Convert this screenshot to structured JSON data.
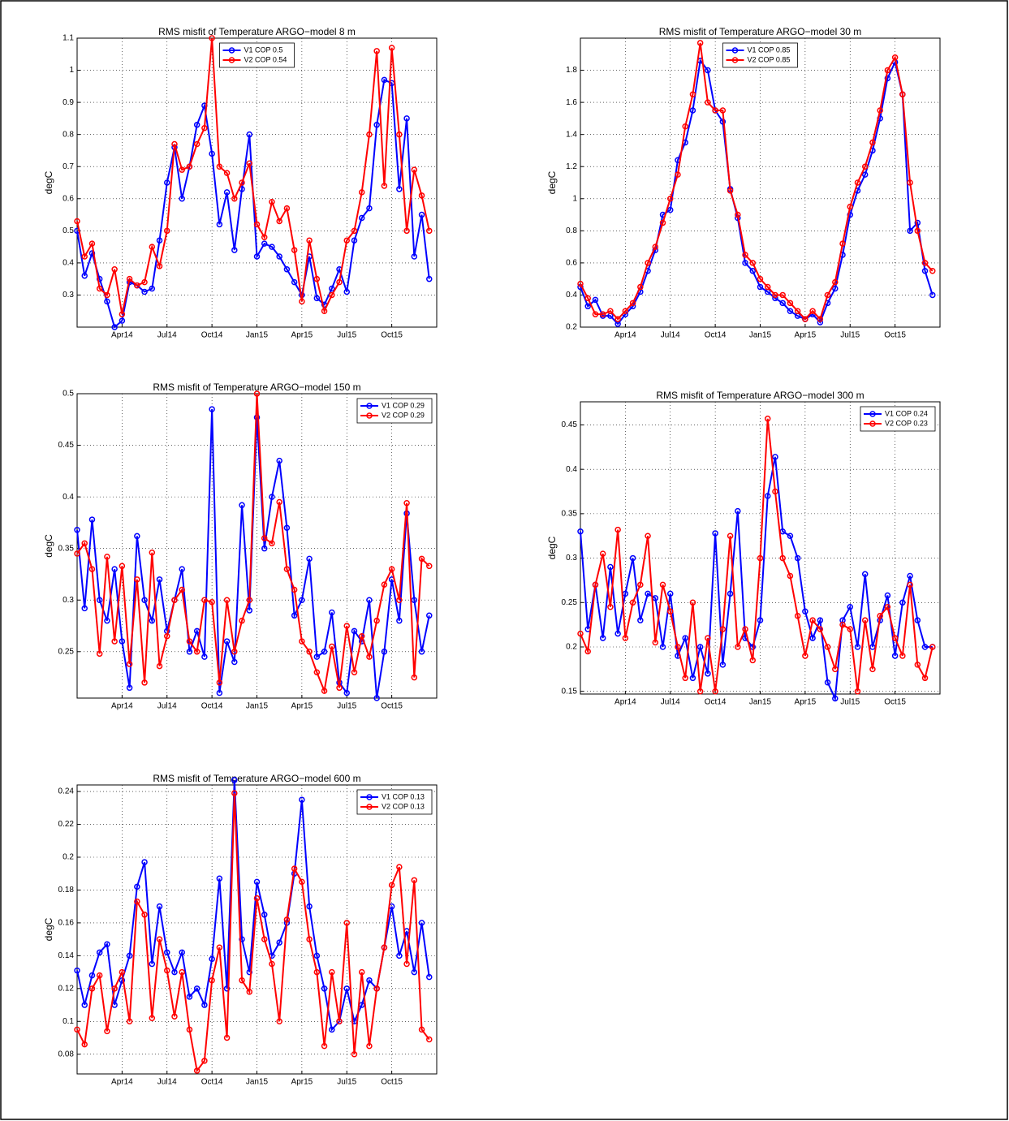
{
  "chart_data": [
    {
      "type": "line",
      "title": "RMS misfit of Temperature ARGO−model 8 m",
      "y_label": "degC",
      "legend": "upper center",
      "grid": true,
      "xlim": [
        0,
        24
      ],
      "xticks": [
        {
          "value": 3,
          "label": "Apr14"
        },
        {
          "value": 6,
          "label": "Jul14"
        },
        {
          "value": 9,
          "label": "Oct14"
        },
        {
          "value": 12,
          "label": "Jan15"
        },
        {
          "value": 15,
          "label": "Apr15"
        },
        {
          "value": 18,
          "label": "Jul15"
        },
        {
          "value": 21,
          "label": "Oct15"
        }
      ],
      "ylim": [
        0.2,
        1.1
      ],
      "yticks": [
        0.3,
        0.4,
        0.5,
        0.6,
        0.7,
        0.8,
        0.9,
        1,
        1.1
      ],
      "x": [
        0,
        0.5,
        1,
        1.5,
        2,
        2.5,
        3,
        3.5,
        4,
        4.5,
        5,
        5.5,
        6,
        6.5,
        7,
        7.5,
        8,
        8.5,
        9,
        9.5,
        10,
        10.5,
        11,
        11.5,
        12,
        12.5,
        13,
        13.5,
        14,
        14.5,
        15,
        15.5,
        16,
        16.5,
        17,
        17.5,
        18,
        18.5,
        19,
        19.5,
        20,
        20.5,
        21,
        21.5,
        22,
        22.5,
        23,
        23.5
      ],
      "series": [
        {
          "name": "V1 COP 0.5",
          "color": "#0000ff",
          "values": [
            0.5,
            0.36,
            0.43,
            0.35,
            0.28,
            0.2,
            0.22,
            0.34,
            0.33,
            0.31,
            0.32,
            0.47,
            0.65,
            0.76,
            0.6,
            0.7,
            0.83,
            0.89,
            0.74,
            0.52,
            0.62,
            0.44,
            0.63,
            0.8,
            0.42,
            0.46,
            0.45,
            0.42,
            0.38,
            0.34,
            0.3,
            0.42,
            0.29,
            0.27,
            0.32,
            0.38,
            0.31,
            0.47,
            0.54,
            0.57,
            0.83,
            0.97,
            0.96,
            0.63,
            0.85,
            0.42,
            0.55,
            0.35
          ]
        },
        {
          "name": "V2 COP 0.54",
          "color": "#ff0000",
          "values": [
            0.53,
            0.42,
            0.46,
            0.32,
            0.3,
            0.38,
            0.24,
            0.35,
            0.33,
            0.34,
            0.45,
            0.39,
            0.5,
            0.77,
            0.69,
            0.7,
            0.77,
            0.82,
            1.1,
            0.7,
            0.68,
            0.6,
            0.65,
            0.71,
            0.52,
            0.48,
            0.59,
            0.53,
            0.57,
            0.44,
            0.28,
            0.47,
            0.35,
            0.25,
            0.3,
            0.34,
            0.47,
            0.5,
            0.62,
            0.8,
            1.06,
            0.64,
            1.07,
            0.8,
            0.5,
            0.69,
            0.61,
            0.5
          ]
        }
      ]
    },
    {
      "type": "line",
      "title": "RMS misfit of Temperature ARGO−model 30 m",
      "y_label": "degC",
      "legend": "upper center",
      "grid": true,
      "xlim": [
        0,
        24
      ],
      "xticks": [
        {
          "value": 3,
          "label": "Apr14"
        },
        {
          "value": 6,
          "label": "Jul14"
        },
        {
          "value": 9,
          "label": "Oct14"
        },
        {
          "value": 12,
          "label": "Jan15"
        },
        {
          "value": 15,
          "label": "Apr15"
        },
        {
          "value": 18,
          "label": "Jul15"
        },
        {
          "value": 21,
          "label": "Oct15"
        }
      ],
      "ylim": [
        0.2,
        2.0
      ],
      "yticks": [
        0.2,
        0.4,
        0.6,
        0.8,
        1,
        1.2,
        1.4,
        1.6,
        1.8
      ],
      "x": [
        0,
        0.5,
        1,
        1.5,
        2,
        2.5,
        3,
        3.5,
        4,
        4.5,
        5,
        5.5,
        6,
        6.5,
        7,
        7.5,
        8,
        8.5,
        9,
        9.5,
        10,
        10.5,
        11,
        11.5,
        12,
        12.5,
        13,
        13.5,
        14,
        14.5,
        15,
        15.5,
        16,
        16.5,
        17,
        17.5,
        18,
        18.5,
        19,
        19.5,
        20,
        20.5,
        21,
        21.5,
        22,
        22.5,
        23,
        23.5
      ],
      "series": [
        {
          "name": "V1 COP 0.85",
          "color": "#0000ff",
          "values": [
            0.45,
            0.33,
            0.37,
            0.27,
            0.27,
            0.22,
            0.28,
            0.33,
            0.42,
            0.55,
            0.68,
            0.9,
            0.93,
            1.24,
            1.35,
            1.55,
            1.86,
            1.8,
            1.55,
            1.48,
            1.06,
            0.88,
            0.6,
            0.55,
            0.45,
            0.42,
            0.38,
            0.35,
            0.3,
            0.27,
            0.25,
            0.28,
            0.23,
            0.35,
            0.44,
            0.65,
            0.9,
            1.05,
            1.15,
            1.3,
            1.5,
            1.75,
            1.85,
            1.65,
            0.8,
            0.85,
            0.55,
            0.4
          ]
        },
        {
          "name": "V2 COP 0.85",
          "color": "#ff0000",
          "values": [
            0.47,
            0.38,
            0.28,
            0.28,
            0.3,
            0.25,
            0.3,
            0.35,
            0.45,
            0.6,
            0.7,
            0.85,
            1.0,
            1.15,
            1.45,
            1.65,
            1.97,
            1.6,
            1.55,
            1.55,
            1.05,
            0.9,
            0.65,
            0.6,
            0.5,
            0.45,
            0.4,
            0.4,
            0.35,
            0.3,
            0.25,
            0.3,
            0.25,
            0.4,
            0.48,
            0.72,
            0.95,
            1.1,
            1.2,
            1.35,
            1.55,
            1.8,
            1.88,
            1.65,
            1.1,
            0.8,
            0.6,
            0.55
          ]
        }
      ]
    },
    {
      "type": "line",
      "title": "RMS misfit of Temperature ARGO−model 150 m",
      "y_label": "degC",
      "legend": "upper right",
      "grid": true,
      "xlim": [
        0,
        24
      ],
      "xticks": [
        {
          "value": 3,
          "label": "Apr14"
        },
        {
          "value": 6,
          "label": "Jul14"
        },
        {
          "value": 9,
          "label": "Oct14"
        },
        {
          "value": 12,
          "label": "Jan15"
        },
        {
          "value": 15,
          "label": "Apr15"
        },
        {
          "value": 18,
          "label": "Jul15"
        },
        {
          "value": 21,
          "label": "Oct15"
        }
      ],
      "ylim": [
        0.205,
        0.5
      ],
      "yticks": [
        0.25,
        0.3,
        0.35,
        0.4,
        0.45,
        0.5
      ],
      "x": [
        0,
        0.5,
        1,
        1.5,
        2,
        2.5,
        3,
        3.5,
        4,
        4.5,
        5,
        5.5,
        6,
        6.5,
        7,
        7.5,
        8,
        8.5,
        9,
        9.5,
        10,
        10.5,
        11,
        11.5,
        12,
        12.5,
        13,
        13.5,
        14,
        14.5,
        15,
        15.5,
        16,
        16.5,
        17,
        17.5,
        18,
        18.5,
        19,
        19.5,
        20,
        20.5,
        21,
        21.5,
        22,
        22.5,
        23,
        23.5
      ],
      "series": [
        {
          "name": "V1 COP 0.29",
          "color": "#0000ff",
          "values": [
            0.368,
            0.292,
            0.378,
            0.3,
            0.28,
            0.33,
            0.26,
            0.215,
            0.362,
            0.3,
            0.28,
            0.32,
            0.27,
            0.3,
            0.33,
            0.25,
            0.27,
            0.245,
            0.485,
            0.21,
            0.26,
            0.24,
            0.392,
            0.29,
            0.477,
            0.35,
            0.4,
            0.435,
            0.37,
            0.285,
            0.3,
            0.34,
            0.245,
            0.25,
            0.288,
            0.22,
            0.21,
            0.27,
            0.26,
            0.3,
            0.205,
            0.25,
            0.32,
            0.28,
            0.384,
            0.3,
            0.25,
            0.285
          ]
        },
        {
          "name": "V2 COP 0.29",
          "color": "#ff0000",
          "values": [
            0.345,
            0.355,
            0.33,
            0.248,
            0.342,
            0.26,
            0.333,
            0.238,
            0.32,
            0.22,
            0.346,
            0.236,
            0.265,
            0.3,
            0.31,
            0.26,
            0.25,
            0.3,
            0.298,
            0.22,
            0.3,
            0.25,
            0.28,
            0.3,
            0.5,
            0.36,
            0.355,
            0.395,
            0.33,
            0.31,
            0.26,
            0.25,
            0.23,
            0.212,
            0.255,
            0.215,
            0.275,
            0.23,
            0.265,
            0.245,
            0.28,
            0.315,
            0.33,
            0.3,
            0.394,
            0.225,
            0.34,
            0.333
          ]
        }
      ]
    },
    {
      "type": "line",
      "title": "RMS misfit of Temperature ARGO−model 300 m",
      "y_label": "degC",
      "legend": "upper right",
      "grid": true,
      "xlim": [
        0,
        24
      ],
      "xticks": [
        {
          "value": 3,
          "label": "Apr14"
        },
        {
          "value": 6,
          "label": "Jul14"
        },
        {
          "value": 9,
          "label": "Oct14"
        },
        {
          "value": 12,
          "label": "Jan15"
        },
        {
          "value": 15,
          "label": "Apr15"
        },
        {
          "value": 18,
          "label": "Jul15"
        },
        {
          "value": 21,
          "label": "Oct15"
        }
      ],
      "ylim": [
        0.147,
        0.476
      ],
      "yticks": [
        0.15,
        0.2,
        0.25,
        0.3,
        0.35,
        0.4,
        0.45
      ],
      "x": [
        0,
        0.5,
        1,
        1.5,
        2,
        2.5,
        3,
        3.5,
        4,
        4.5,
        5,
        5.5,
        6,
        6.5,
        7,
        7.5,
        8,
        8.5,
        9,
        9.5,
        10,
        10.5,
        11,
        11.5,
        12,
        12.5,
        13,
        13.5,
        14,
        14.5,
        15,
        15.5,
        16,
        16.5,
        17,
        17.5,
        18,
        18.5,
        19,
        19.5,
        20,
        20.5,
        21,
        21.5,
        22,
        22.5,
        23,
        23.5
      ],
      "series": [
        {
          "name": "V1 COP 0.24",
          "color": "#0000ff",
          "values": [
            0.33,
            0.22,
            0.27,
            0.21,
            0.29,
            0.215,
            0.26,
            0.3,
            0.23,
            0.26,
            0.255,
            0.2,
            0.26,
            0.19,
            0.21,
            0.165,
            0.2,
            0.17,
            0.328,
            0.18,
            0.26,
            0.353,
            0.21,
            0.2,
            0.23,
            0.37,
            0.414,
            0.33,
            0.325,
            0.3,
            0.24,
            0.21,
            0.23,
            0.16,
            0.142,
            0.23,
            0.245,
            0.2,
            0.282,
            0.2,
            0.23,
            0.258,
            0.19,
            0.25,
            0.28,
            0.23,
            0.2,
            0.2
          ]
        },
        {
          "name": "V2 COP 0.23",
          "color": "#ff0000",
          "values": [
            0.215,
            0.195,
            0.27,
            0.305,
            0.245,
            0.332,
            0.21,
            0.25,
            0.27,
            0.325,
            0.205,
            0.27,
            0.24,
            0.2,
            0.165,
            0.25,
            0.15,
            0.21,
            0.15,
            0.22,
            0.325,
            0.2,
            0.22,
            0.185,
            0.3,
            0.457,
            0.375,
            0.3,
            0.28,
            0.235,
            0.19,
            0.23,
            0.22,
            0.2,
            0.175,
            0.225,
            0.22,
            0.15,
            0.23,
            0.175,
            0.235,
            0.245,
            0.21,
            0.19,
            0.27,
            0.18,
            0.165,
            0.2
          ]
        }
      ]
    },
    {
      "type": "line",
      "title": "RMS misfit of Temperature ARGO−model 600 m",
      "y_label": "degC",
      "legend": "upper right",
      "grid": true,
      "xlim": [
        0,
        24
      ],
      "xticks": [
        {
          "value": 3,
          "label": "Apr14"
        },
        {
          "value": 6,
          "label": "Jul14"
        },
        {
          "value": 9,
          "label": "Oct14"
        },
        {
          "value": 12,
          "label": "Jan15"
        },
        {
          "value": 15,
          "label": "Apr15"
        },
        {
          "value": 18,
          "label": "Jul15"
        },
        {
          "value": 21,
          "label": "Oct15"
        }
      ],
      "ylim": [
        0.068,
        0.244
      ],
      "yticks": [
        0.08,
        0.1,
        0.12,
        0.14,
        0.16,
        0.18,
        0.2,
        0.22,
        0.24
      ],
      "x": [
        0,
        0.5,
        1,
        1.5,
        2,
        2.5,
        3,
        3.5,
        4,
        4.5,
        5,
        5.5,
        6,
        6.5,
        7,
        7.5,
        8,
        8.5,
        9,
        9.5,
        10,
        10.5,
        11,
        11.5,
        12,
        12.5,
        13,
        13.5,
        14,
        14.5,
        15,
        15.5,
        16,
        16.5,
        17,
        17.5,
        18,
        18.5,
        19,
        19.5,
        20,
        20.5,
        21,
        21.5,
        22,
        22.5,
        23,
        23.5
      ],
      "series": [
        {
          "name": "V1 COP 0.13",
          "color": "#0000ff",
          "values": [
            0.131,
            0.11,
            0.128,
            0.142,
            0.147,
            0.11,
            0.125,
            0.14,
            0.182,
            0.197,
            0.135,
            0.17,
            0.142,
            0.13,
            0.142,
            0.115,
            0.12,
            0.11,
            0.138,
            0.187,
            0.12,
            0.247,
            0.15,
            0.13,
            0.185,
            0.165,
            0.14,
            0.148,
            0.16,
            0.19,
            0.235,
            0.17,
            0.14,
            0.12,
            0.095,
            0.1,
            0.12,
            0.1,
            0.11,
            0.125,
            0.12,
            0.145,
            0.17,
            0.14,
            0.155,
            0.13,
            0.16,
            0.127
          ]
        },
        {
          "name": "V2 COP 0.13",
          "color": "#ff0000",
          "values": [
            0.095,
            0.086,
            0.12,
            0.128,
            0.094,
            0.12,
            0.13,
            0.1,
            0.173,
            0.165,
            0.102,
            0.15,
            0.131,
            0.103,
            0.13,
            0.095,
            0.07,
            0.076,
            0.125,
            0.145,
            0.09,
            0.239,
            0.125,
            0.118,
            0.175,
            0.15,
            0.135,
            0.1,
            0.162,
            0.193,
            0.185,
            0.15,
            0.13,
            0.085,
            0.13,
            0.1,
            0.16,
            0.08,
            0.13,
            0.085,
            0.12,
            0.145,
            0.183,
            0.194,
            0.135,
            0.186,
            0.095,
            0.089
          ]
        }
      ]
    }
  ]
}
